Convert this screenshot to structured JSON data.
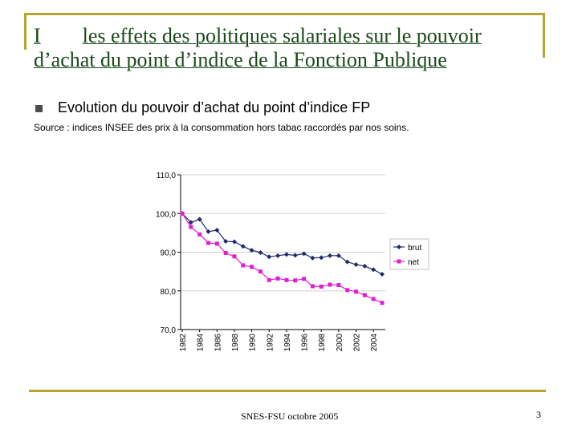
{
  "slide": {
    "title_roman": "I",
    "title_text": "les effets des politiques salariales sur le pouvoir",
    "title_line2": "d’achat du point d’indice de la Fonction Publique",
    "subtitle": "Evolution du pouvoir d’achat du point d’indice FP",
    "source": "Source : indices INSEE des prix à la consommation hors tabac raccordés par nos soins.",
    "footer": "SNES-FSU octobre 2005",
    "page_number": "3"
  },
  "colors": {
    "frame": "#b8a530",
    "title": "#1a4a1a",
    "brut": "#1f2a6e",
    "net": "#e020d0"
  },
  "chart_data": {
    "type": "line",
    "x": [
      1982,
      1983,
      1984,
      1985,
      1986,
      1987,
      1988,
      1989,
      1990,
      1991,
      1992,
      1993,
      1994,
      1995,
      1996,
      1997,
      1998,
      1999,
      2000,
      2001,
      2002,
      2003,
      2004,
      2005
    ],
    "x_tick_labels": [
      "1982",
      "1984",
      "1986",
      "1988",
      "1990",
      "1992",
      "1994",
      "1996",
      "1998",
      "2000",
      "2002",
      "2004"
    ],
    "y_tick_labels": [
      "110,0",
      "100,0",
      "90,0",
      "80,0",
      "70,0"
    ],
    "y_ticks": [
      110,
      100,
      90,
      80,
      70
    ],
    "ylim": [
      70,
      110
    ],
    "series": [
      {
        "name": "brut",
        "values": [
          100.0,
          97.7,
          98.5,
          95.3,
          95.7,
          92.8,
          92.7,
          91.5,
          90.5,
          89.9,
          88.8,
          89.1,
          89.4,
          89.2,
          89.6,
          88.5,
          88.6,
          89.1,
          89.1,
          87.5,
          86.8,
          86.4,
          85.5,
          84.3
        ]
      },
      {
        "name": "net",
        "values": [
          100.0,
          96.5,
          94.6,
          92.4,
          92.2,
          89.8,
          88.9,
          86.6,
          86.2,
          85.0,
          82.8,
          83.2,
          82.8,
          82.7,
          83.1,
          81.2,
          81.1,
          81.6,
          81.5,
          80.2,
          79.8,
          78.9,
          77.9,
          76.9
        ]
      }
    ],
    "legend": [
      "brut",
      "net"
    ],
    "title": "",
    "xlabel": "",
    "ylabel": ""
  }
}
